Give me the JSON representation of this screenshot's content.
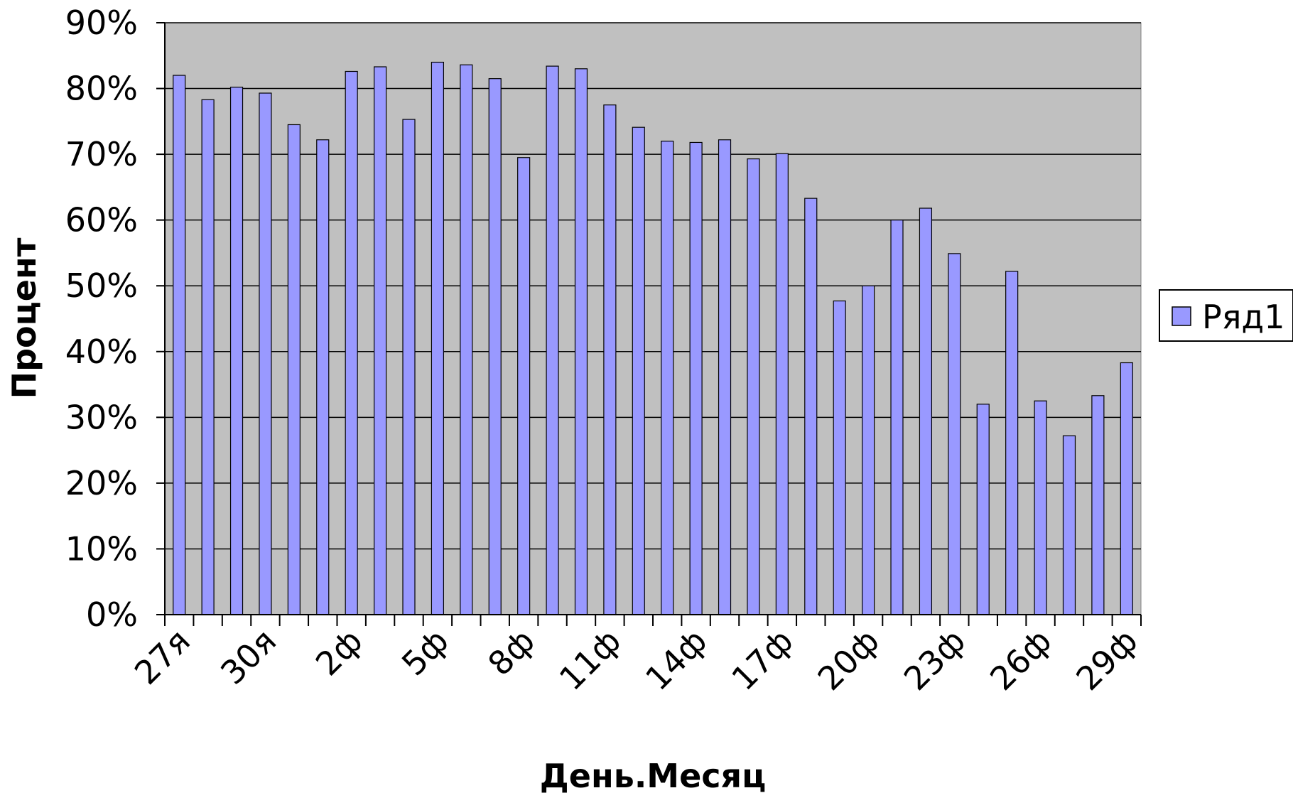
{
  "chart_data": {
    "type": "bar",
    "title": "",
    "xlabel": "День.Месяц",
    "ylabel": "Процент",
    "ylim": [
      0,
      0.9
    ],
    "y_ticks": [
      0,
      0.1,
      0.2,
      0.3,
      0.4,
      0.5,
      0.6,
      0.7,
      0.8,
      0.9
    ],
    "y_tick_labels": [
      "0%",
      "10%",
      "20%",
      "30%",
      "40%",
      "50%",
      "60%",
      "70%",
      "80%",
      "90%"
    ],
    "x_tick_labels": [
      "27я",
      "30я",
      "2ф",
      "5ф",
      "8ф",
      "11ф",
      "14ф",
      "17ф",
      "20ф",
      "23ф",
      "26ф",
      "29ф"
    ],
    "label_every": 3,
    "grid": true,
    "legend_position": "right",
    "colors": {
      "plot_background": "#c0c0c0",
      "bar_fill": "#9999ff",
      "bar_stroke": "#000000",
      "grid": "#000000"
    },
    "series": [
      {
        "name": "Ряд1",
        "values": [
          0.82,
          0.783,
          0.802,
          0.793,
          0.745,
          0.722,
          0.826,
          0.833,
          0.753,
          0.84,
          0.836,
          0.815,
          0.695,
          0.834,
          0.83,
          0.775,
          0.741,
          0.72,
          0.718,
          0.722,
          0.693,
          0.701,
          0.633,
          0.477,
          0.5,
          0.6,
          0.618,
          0.549,
          0.32,
          0.522,
          0.325,
          0.272,
          0.333,
          0.383
        ]
      }
    ]
  }
}
